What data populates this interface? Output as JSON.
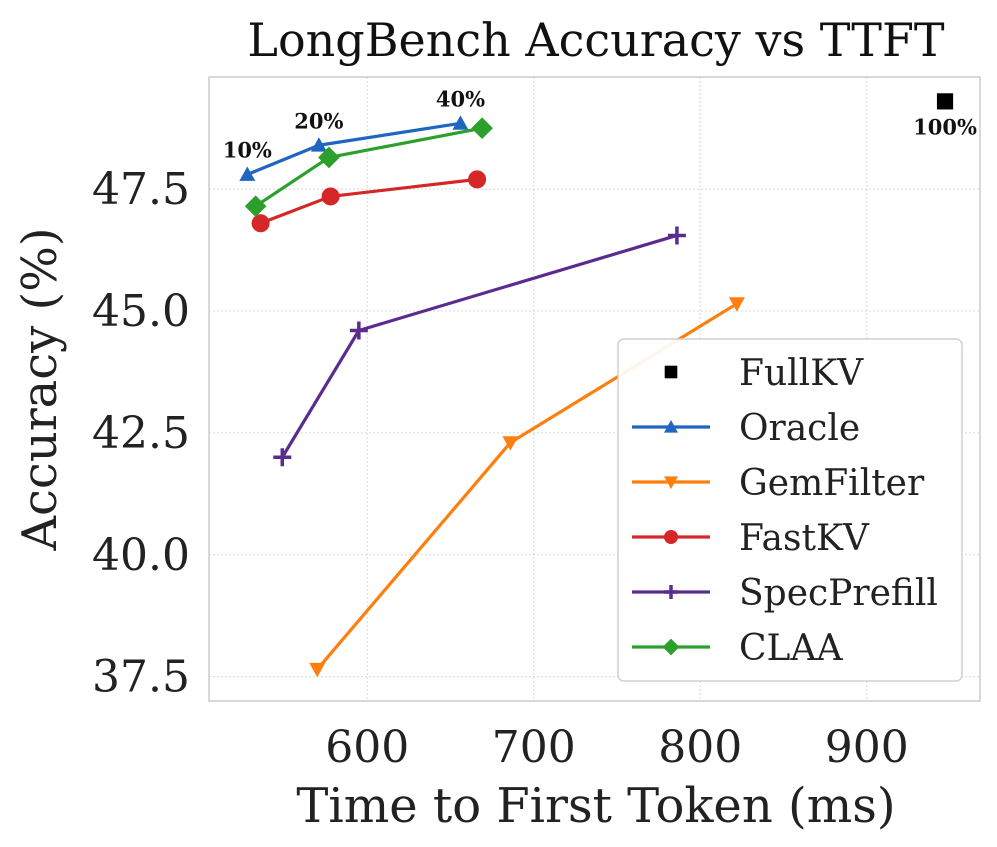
{
  "chart_data": {
    "type": "line",
    "title": "LongBench Accuracy vs TTFT",
    "xlabel": "Time to First Token (ms)",
    "ylabel": "Accuracy (%)",
    "xlim": [
      505,
      968
    ],
    "ylim": [
      37.0,
      49.8
    ],
    "xticks": [
      600,
      700,
      800,
      900
    ],
    "xtick_labels": [
      "600",
      "700",
      "800",
      "900"
    ],
    "yticks": [
      37.5,
      40.0,
      42.5,
      45.0,
      47.5
    ],
    "ytick_labels": [
      "37.5",
      "40.0",
      "42.5",
      "45.0",
      "47.5"
    ],
    "grid": true,
    "legend_position": "lower-right",
    "series": [
      {
        "name": "FullKV",
        "color": "#000000",
        "marker": "square",
        "line": false,
        "x": [
          947
        ],
        "y": [
          49.3
        ]
      },
      {
        "name": "Oracle",
        "color": "#1f66c1",
        "marker": "triangle-up",
        "line": true,
        "x": [
          528,
          571,
          656
        ],
        "y": [
          47.8,
          48.4,
          48.85
        ]
      },
      {
        "name": "GemFilter",
        "color": "#ff7f0e",
        "marker": "triangle-down",
        "line": true,
        "x": [
          570,
          686,
          822
        ],
        "y": [
          37.65,
          42.3,
          45.15
        ]
      },
      {
        "name": "FastKV",
        "color": "#d62728",
        "marker": "circle",
        "line": true,
        "x": [
          536,
          578,
          666
        ],
        "y": [
          46.8,
          47.35,
          47.7
        ]
      },
      {
        "name": "SpecPrefill",
        "color": "#5b2c90",
        "marker": "plus",
        "line": true,
        "x": [
          549,
          595,
          786
        ],
        "y": [
          42.0,
          44.6,
          46.55
        ]
      },
      {
        "name": "CLAA",
        "color": "#2ca02c",
        "marker": "diamond",
        "line": true,
        "x": [
          533,
          577,
          669
        ],
        "y": [
          47.15,
          48.15,
          48.75
        ]
      }
    ],
    "annotations": [
      {
        "text": "10%",
        "x": 528,
        "y": 47.8,
        "anchor": "above"
      },
      {
        "text": "20%",
        "x": 571,
        "y": 48.4,
        "anchor": "above"
      },
      {
        "text": "40%",
        "x": 656,
        "y": 48.85,
        "anchor": "above"
      },
      {
        "text": "100%",
        "x": 947,
        "y": 49.3,
        "anchor": "below"
      }
    ]
  }
}
